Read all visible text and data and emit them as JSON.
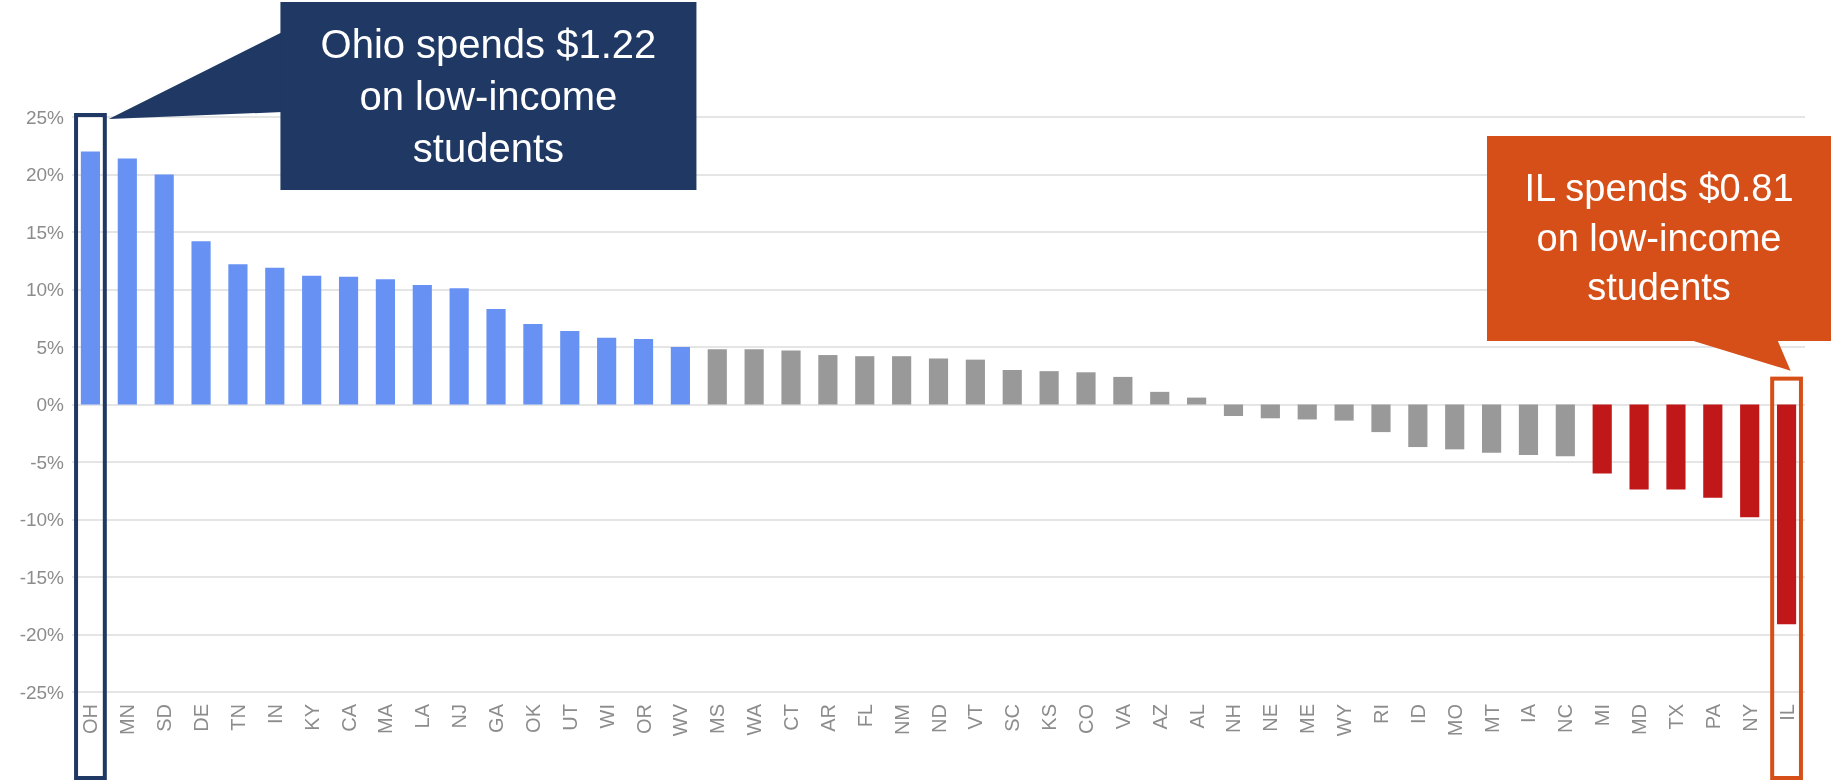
{
  "chart_data": {
    "type": "bar",
    "categories": [
      "OH",
      "MN",
      "SD",
      "DE",
      "TN",
      "IN",
      "KY",
      "CA",
      "MA",
      "LA",
      "NJ",
      "GA",
      "OK",
      "UT",
      "WI",
      "OR",
      "WV",
      "MS",
      "WA",
      "CT",
      "AR",
      "FL",
      "NM",
      "ND",
      "VT",
      "SC",
      "KS",
      "CO",
      "VA",
      "AZ",
      "AL",
      "NH",
      "NE",
      "ME",
      "WY",
      "RI",
      "ID",
      "MO",
      "MT",
      "IA",
      "NC",
      "MI",
      "MD",
      "TX",
      "PA",
      "NY",
      "IL"
    ],
    "values": [
      22.0,
      21.4,
      20.0,
      14.2,
      12.2,
      11.9,
      11.2,
      11.1,
      10.9,
      10.4,
      10.1,
      8.3,
      7.0,
      6.4,
      5.8,
      5.7,
      5.0,
      4.8,
      4.8,
      4.7,
      4.3,
      4.2,
      4.2,
      4.0,
      3.9,
      3.0,
      2.9,
      2.8,
      2.4,
      1.1,
      0.6,
      -1.0,
      -1.2,
      -1.3,
      -1.4,
      -2.4,
      -3.7,
      -3.9,
      -4.2,
      -4.4,
      -4.5,
      -6.0,
      -7.4,
      -7.4,
      -8.1,
      -9.8,
      -19.1
    ],
    "colors": [
      "#6792f3",
      "#6792f3",
      "#6792f3",
      "#6792f3",
      "#6792f3",
      "#6792f3",
      "#6792f3",
      "#6792f3",
      "#6792f3",
      "#6792f3",
      "#6792f3",
      "#6792f3",
      "#6792f3",
      "#6792f3",
      "#6792f3",
      "#6792f3",
      "#6792f3",
      "#999999",
      "#999999",
      "#999999",
      "#999999",
      "#999999",
      "#999999",
      "#999999",
      "#999999",
      "#999999",
      "#999999",
      "#999999",
      "#999999",
      "#999999",
      "#999999",
      "#999999",
      "#999999",
      "#999999",
      "#999999",
      "#999999",
      "#999999",
      "#999999",
      "#999999",
      "#999999",
      "#999999",
      "#c01718",
      "#c01718",
      "#c01718",
      "#c01718",
      "#c01718",
      "#c01718"
    ],
    "ylim": [
      -25,
      25
    ],
    "yticks": [
      {
        "value": -25,
        "label": "-25%"
      },
      {
        "value": -20,
        "label": "-20%"
      },
      {
        "value": -15,
        "label": "-15%"
      },
      {
        "value": -10,
        "label": "-10%"
      },
      {
        "value": -5,
        "label": "-5%"
      },
      {
        "value": 0,
        "label": "0%"
      },
      {
        "value": 5,
        "label": "5%"
      },
      {
        "value": 10,
        "label": "10%"
      },
      {
        "value": 15,
        "label": "15%"
      },
      {
        "value": 20,
        "label": "20%"
      },
      {
        "value": 25,
        "label": "25%"
      }
    ],
    "grid": "y",
    "annotations": [
      "Ohio spends $1.22 on low-income students",
      "IL spends $0.81 on low-income students"
    ]
  }
}
